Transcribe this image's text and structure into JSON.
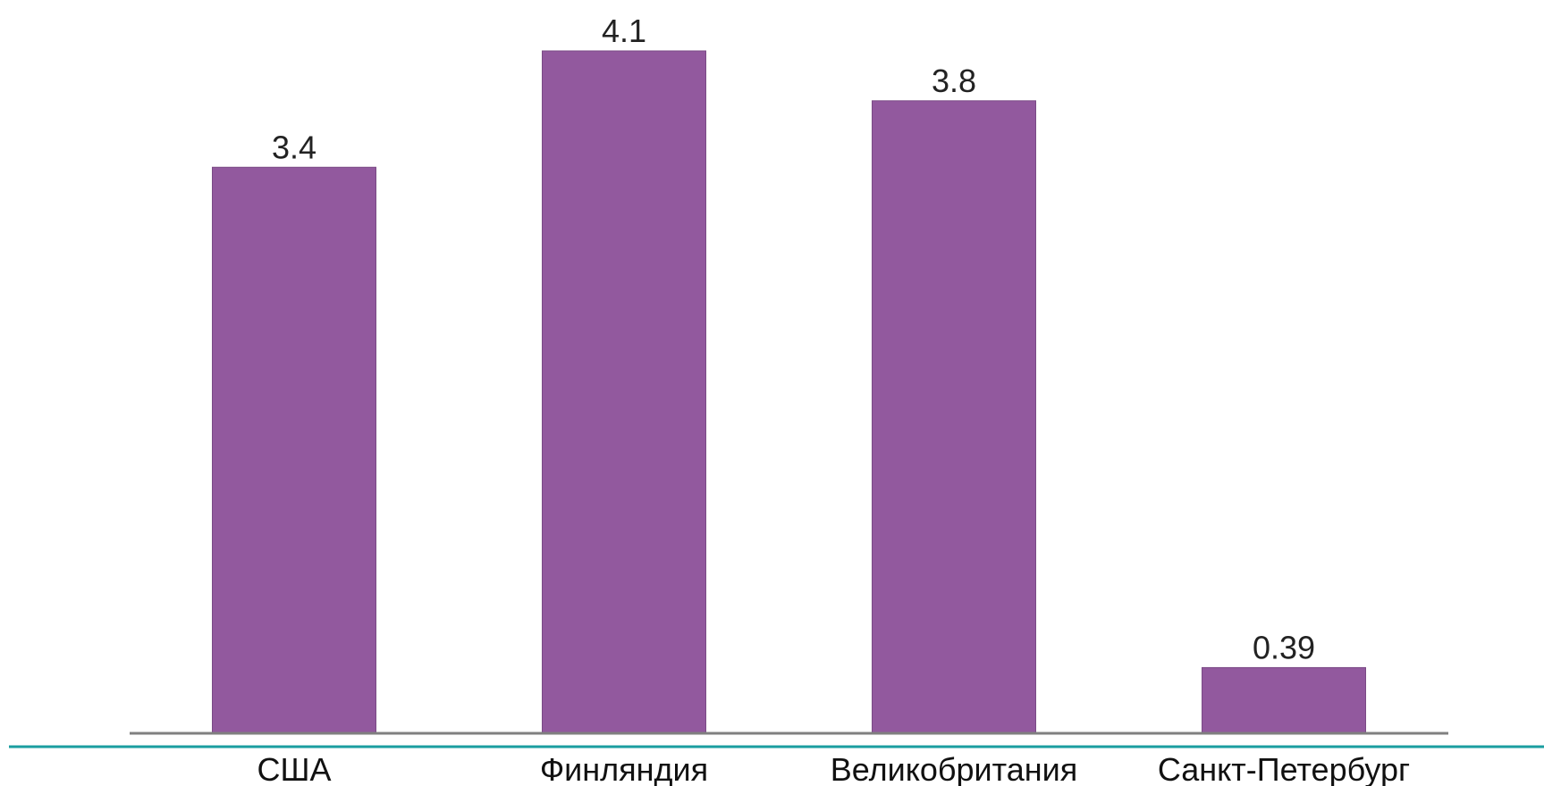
{
  "chart_data": {
    "type": "bar",
    "categories": [
      "США",
      "Финляндия",
      "Великобритания",
      "Санкт-Петербург"
    ],
    "values": [
      3.4,
      4.1,
      3.8,
      0.39
    ],
    "value_labels": [
      "3.4",
      "4.1",
      "3.8",
      "0.39"
    ],
    "title": "",
    "xlabel": "",
    "ylabel": "",
    "ylim": [
      0,
      4.1
    ],
    "grid": false,
    "legend": "none",
    "colors": {
      "bar": "#92599e",
      "bar_edge": "#7a4a85",
      "axis": "#808080",
      "accent_rule": "#1a9ea0"
    }
  }
}
